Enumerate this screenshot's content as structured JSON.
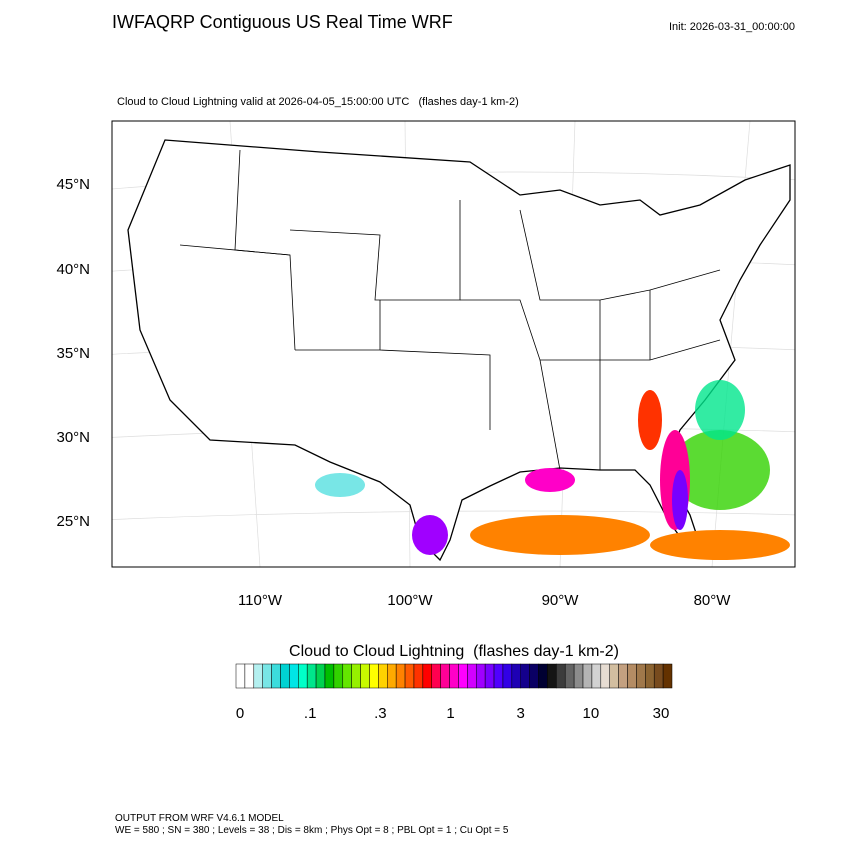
{
  "header": {
    "title": "IWFAQRP Contiguous US Real Time WRF",
    "init": "Init: 2026-03-31_00:00:00",
    "subtitle": "Cloud to Cloud Lightning valid at 2026-04-05_15:00:00 UTC   (flashes day-1 km-2)"
  },
  "map": {
    "lat_labels": [
      "45°N",
      "40°N",
      "35°N",
      "30°N",
      "25°N"
    ],
    "lon_labels": [
      "110°W",
      "100°W",
      "90°W",
      "80°W"
    ]
  },
  "colorbar": {
    "title": "Cloud to Cloud Lightning  (flashes day-1 km-2)",
    "labels": [
      "0",
      ".1",
      ".3",
      "1",
      "3",
      "10",
      "30"
    ],
    "colors": [
      "#ffffff",
      "#ffffff",
      "#b4f0f0",
      "#78e6e6",
      "#3cdcdc",
      "#00d2d2",
      "#00e6e6",
      "#00ffc8",
      "#00e68c",
      "#00d250",
      "#00be00",
      "#32d200",
      "#64e600",
      "#96f000",
      "#c8fa00",
      "#ffff00",
      "#ffd200",
      "#ffaa00",
      "#ff8200",
      "#ff5a00",
      "#ff3200",
      "#ff0000",
      "#ff0050",
      "#ff0096",
      "#ff00c8",
      "#ff00ff",
      "#d200ff",
      "#a000ff",
      "#7800ff",
      "#5000ff",
      "#3200e6",
      "#1e00b4",
      "#14008c",
      "#0a0064",
      "#000032",
      "#141414",
      "#3c3c3c",
      "#646464",
      "#8c8c8c",
      "#b4b4b4",
      "#d2d2d2",
      "#e6dcd2",
      "#d2bea0",
      "#c3a080",
      "#b48c64",
      "#a0784b",
      "#8c6432",
      "#784b1e",
      "#643200"
    ]
  },
  "footer": {
    "lines": [
      "OUTPUT FROM WRF V4.6.1 MODEL",
      "WE = 580 ; SN = 380 ; Levels = 38 ; Dis = 8km ; Phys Opt = 8 ; PBL Opt = 1 ; Cu Opt = 5"
    ]
  }
}
